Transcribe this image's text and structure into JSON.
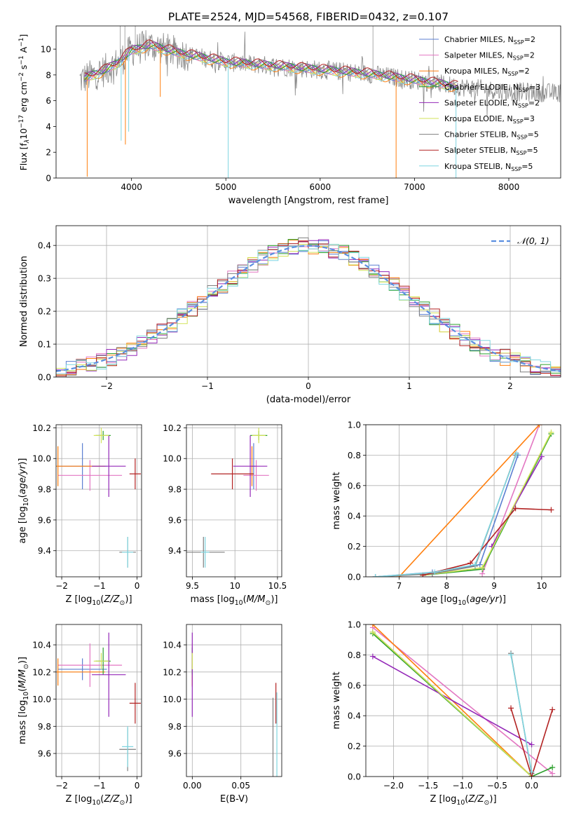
{
  "figure_title": "PLATE=2524, MJD=54568, FIBERID=0432, z=0.107",
  "series_names": [
    "Chabrier MILES",
    "Salpeter MILES",
    "Kroupa MILES",
    "Chabrier ELODIE",
    "Salpeter ELODIE",
    "Kroupa ELODIE",
    "Chabrier STELIB",
    "Salpeter STELIB",
    "Kroupa STELIB"
  ],
  "series_colors": [
    "#5b7fd1",
    "#e377c2",
    "#ff7f0e",
    "#2ca02c",
    "#9428b8",
    "#d2e35a",
    "#7f7f7f",
    "#b22222",
    "#7fd6e0"
  ],
  "chart_data": [
    {
      "type": "line",
      "panel": "spectrum",
      "xlabel": "wavelength [Angstrom, rest frame]",
      "ylabel_parts": [
        "Flux [f",
        "λ",
        "10",
        "−17",
        " erg cm",
        "−2",
        " s",
        "−1",
        " A",
        "−1",
        "]"
      ],
      "xlim": [
        3200,
        8550
      ],
      "ylim": [
        0,
        11.8
      ],
      "xticks": [
        4000,
        5000,
        6000,
        7000,
        8000
      ],
      "yticks": [
        0,
        2,
        4,
        6,
        8,
        10
      ],
      "grid": false,
      "legend_position": "top-right",
      "legend": [
        {
          "name": "Chabrier MILES",
          "n": "2"
        },
        {
          "name": "Salpeter MILES",
          "n": "2"
        },
        {
          "name": "Kroupa MILES",
          "n": "2"
        },
        {
          "name": "Chabrier ELODIE",
          "n": "3"
        },
        {
          "name": "Salpeter ELODIE",
          "n": "2"
        },
        {
          "name": "Kroupa ELODIE",
          "n": "3"
        },
        {
          "name": "Chabrier STELIB",
          "n": "5"
        },
        {
          "name": "Salpeter STELIB",
          "n": "5"
        },
        {
          "name": "Kroupa STELIB",
          "n": "5"
        }
      ],
      "legend_n_label": "N",
      "legend_n_sub": "SSP",
      "continuum": [
        [
          3450,
          7.6
        ],
        [
          3700,
          8.3
        ],
        [
          3850,
          8.9
        ],
        [
          4000,
          9.9
        ],
        [
          4200,
          10.3
        ],
        [
          4500,
          9.7
        ],
        [
          5000,
          9.0
        ],
        [
          5500,
          8.7
        ],
        [
          6000,
          8.4
        ],
        [
          6500,
          8.1
        ],
        [
          7000,
          7.6
        ],
        [
          7450,
          7.1
        ],
        [
          8000,
          6.7
        ],
        [
          8550,
          6.6
        ]
      ],
      "drops": [
        {
          "x": 3530,
          "y": 0.1
        },
        {
          "x": 3890,
          "y": 2.9
        },
        {
          "x": 3935,
          "y": 2.6
        },
        {
          "x": 3970,
          "y": 3.6
        },
        {
          "x": 4305,
          "y": 6.3
        },
        {
          "x": 5025,
          "y": 0.0
        },
        {
          "x": 6805,
          "y": 0.0
        },
        {
          "x": 7440,
          "y": 0.0
        }
      ]
    },
    {
      "type": "histogram",
      "panel": "residuals",
      "xlabel": "(data-model)/error",
      "ylabel": "Normed distribution",
      "xlim": [
        -2.5,
        2.5
      ],
      "ylim": [
        0,
        0.46
      ],
      "xticks": [
        -2,
        -1,
        0,
        1,
        2
      ],
      "yticks": [
        0.0,
        0.1,
        0.2,
        0.3,
        0.4
      ],
      "grid": true,
      "bin_width": 0.1,
      "reference_curve": {
        "name": "𝒩(0, 1)",
        "mean": 0,
        "sigma": 1
      },
      "legend_position": "top-right"
    },
    {
      "type": "scatter",
      "panel": "age-vs-Z",
      "xlabel": "Z [log10(Z/Z⊙)]",
      "ylabel": "age [log10(age/yr)]",
      "xlim": [
        -2.15,
        0.12
      ],
      "ylim": [
        9.23,
        10.22
      ],
      "xticks": [
        -2,
        -1,
        0
      ],
      "yticks": [
        9.4,
        9.6,
        9.8,
        10.0,
        10.2
      ],
      "grid": true,
      "points": [
        {
          "series": 0,
          "x": -1.45,
          "y": 9.95,
          "xerr": 0.65,
          "yerr": 0.15
        },
        {
          "series": 1,
          "x": -1.25,
          "y": 9.89,
          "xerr": 0.85,
          "yerr": 0.1
        },
        {
          "series": 2,
          "x": -2.1,
          "y": 9.95,
          "xerr": 1.25,
          "yerr": 0.13
        },
        {
          "series": 3,
          "x": -0.9,
          "y": 10.15,
          "xerr": 0.2,
          "yerr": 0.03
        },
        {
          "series": 4,
          "x": -0.75,
          "y": 9.95,
          "xerr": 0.45,
          "yerr": 0.2
        },
        {
          "series": 5,
          "x": -0.95,
          "y": 10.15,
          "xerr": 0.2,
          "yerr": 0.05
        },
        {
          "series": 6,
          "x": -0.25,
          "y": 9.39,
          "xerr": 0.22,
          "yerr": 0.1
        },
        {
          "series": 7,
          "x": -0.05,
          "y": 9.9,
          "xerr": 0.15,
          "yerr": 0.1
        },
        {
          "series": 8,
          "x": -0.25,
          "y": 9.39,
          "xerr": 0.15,
          "yerr": 0.1
        }
      ]
    },
    {
      "type": "scatter",
      "panel": "age-vs-mass",
      "xlabel": "mass [log10(M/M⊙)]",
      "ylabel": "",
      "xlim": [
        9.43,
        10.55
      ],
      "ylim": [
        9.23,
        10.22
      ],
      "xticks": [
        9.5,
        10.0,
        10.5
      ],
      "yticks": [
        9.4,
        9.6,
        9.8,
        10.0,
        10.2
      ],
      "grid": true,
      "points": [
        {
          "series": 0,
          "x": 10.22,
          "y": 9.95,
          "xerr": 0.02,
          "yerr": 0.15
        },
        {
          "series": 1,
          "x": 10.25,
          "y": 9.89,
          "xerr": 0.15,
          "yerr": 0.1
        },
        {
          "series": 2,
          "x": 10.2,
          "y": 9.95,
          "xerr": 0.02,
          "yerr": 0.13
        },
        {
          "series": 3,
          "x": 10.28,
          "y": 10.15,
          "xerr": 0.1,
          "yerr": 0.03
        },
        {
          "series": 4,
          "x": 10.18,
          "y": 9.95,
          "xerr": 0.2,
          "yerr": 0.2
        },
        {
          "series": 5,
          "x": 10.28,
          "y": 10.15,
          "xerr": 0.08,
          "yerr": 0.05
        },
        {
          "series": 6,
          "x": 9.63,
          "y": 9.39,
          "xerr": 0.25,
          "yerr": 0.1
        },
        {
          "series": 7,
          "x": 9.97,
          "y": 9.9,
          "xerr": 0.25,
          "yerr": 0.1
        },
        {
          "series": 8,
          "x": 9.65,
          "y": 9.39,
          "xerr": 0.05,
          "yerr": 0.1
        }
      ]
    },
    {
      "type": "line",
      "panel": "mass-weight-vs-age",
      "xlabel": "age  [log10(age/yr)]",
      "ylabel": "mass weight",
      "xlim": [
        6.3,
        10.4
      ],
      "ylim": [
        0,
        1.0
      ],
      "xticks": [
        7,
        8,
        9,
        10
      ],
      "yticks": [
        0.0,
        0.2,
        0.4,
        0.6,
        0.8,
        1.0
      ],
      "grid": true,
      "series": [
        {
          "color": 0,
          "x": [
            6.5,
            7.7,
            8.7,
            9.5
          ],
          "y": [
            0.0,
            0.03,
            0.08,
            0.8
          ]
        },
        {
          "color": 1,
          "x": [
            8.75,
            9.95
          ],
          "y": [
            0.02,
            1.0
          ]
        },
        {
          "color": 2,
          "x": [
            7.0,
            9.95
          ],
          "y": [
            0.0,
            1.0
          ]
        },
        {
          "color": 3,
          "x": [
            7.5,
            8.75,
            10.2
          ],
          "y": [
            0.01,
            0.05,
            0.94
          ]
        },
        {
          "color": 4,
          "x": [
            8.95,
            10.0
          ],
          "y": [
            0.2,
            0.79
          ]
        },
        {
          "color": 5,
          "x": [
            7.5,
            8.75,
            10.2
          ],
          "y": [
            0.01,
            0.06,
            0.95
          ]
        },
        {
          "color": 6,
          "x": [
            6.5,
            7.7,
            8.6,
            9.45
          ],
          "y": [
            0.0,
            0.02,
            0.07,
            0.8
          ]
        },
        {
          "color": 7,
          "x": [
            7.5,
            8.5,
            9.45,
            10.2
          ],
          "y": [
            0.01,
            0.09,
            0.45,
            0.44
          ]
        },
        {
          "color": 8,
          "x": [
            6.5,
            7.75,
            8.6,
            9.47
          ],
          "y": [
            0.0,
            0.03,
            0.08,
            0.81
          ]
        }
      ]
    },
    {
      "type": "scatter",
      "panel": "mass-vs-Z",
      "xlabel": "Z [log10(Z/Z⊙)]",
      "ylabel": "mass [log10(M/M⊙)]",
      "xlim": [
        -2.15,
        0.12
      ],
      "ylim": [
        9.43,
        10.55
      ],
      "xticks": [
        -2,
        -1,
        0
      ],
      "yticks": [
        9.6,
        9.8,
        10.0,
        10.2,
        10.4
      ],
      "grid": true,
      "points": [
        {
          "series": 0,
          "x": -1.45,
          "y": 10.22,
          "xerr": 0.65,
          "yerr": 0.08
        },
        {
          "series": 1,
          "x": -1.25,
          "y": 10.25,
          "xerr": 0.85,
          "yerr": 0.16
        },
        {
          "series": 2,
          "x": -2.1,
          "y": 10.2,
          "xerr": 1.25,
          "yerr": 0.1
        },
        {
          "series": 3,
          "x": -0.9,
          "y": 10.28,
          "xerr": 0.2,
          "yerr": 0.1
        },
        {
          "series": 4,
          "x": -0.75,
          "y": 10.18,
          "xerr": 0.45,
          "yerr": 0.31
        },
        {
          "series": 5,
          "x": -0.95,
          "y": 10.28,
          "xerr": 0.2,
          "yerr": 0.06
        },
        {
          "series": 6,
          "x": -0.25,
          "y": 9.63,
          "xerr": 0.22,
          "yerr": 0.16
        },
        {
          "series": 7,
          "x": -0.05,
          "y": 9.97,
          "xerr": 0.15,
          "yerr": 0.15
        },
        {
          "series": 8,
          "x": -0.25,
          "y": 9.65,
          "xerr": 0.15,
          "yerr": 0.15
        }
      ]
    },
    {
      "type": "scatter",
      "panel": "mass-vs-ebv",
      "xlabel": "E(B-V)",
      "ylabel": "",
      "xlim": [
        -0.006,
        0.092
      ],
      "ylim": [
        9.43,
        10.55
      ],
      "xticks": [
        0.0,
        0.05
      ],
      "xtick_labels": [
        "0.00",
        "0.05"
      ],
      "yticks": [
        9.6,
        9.8,
        10.0,
        10.2,
        10.4
      ],
      "grid": true,
      "points": [
        {
          "series": 0,
          "x": 0.0,
          "y": 10.22,
          "xerr": 0.0,
          "yerr": 0.08
        },
        {
          "series": 1,
          "x": 0.0,
          "y": 10.25,
          "xerr": 0.0,
          "yerr": 0.16
        },
        {
          "series": 2,
          "x": 0.0,
          "y": 10.2,
          "xerr": 0.0,
          "yerr": 0.1
        },
        {
          "series": 3,
          "x": 0.0,
          "y": 10.28,
          "xerr": 0.0,
          "yerr": 0.1
        },
        {
          "series": 4,
          "x": 0.0,
          "y": 10.18,
          "xerr": 0.0,
          "yerr": 0.31
        },
        {
          "series": 5,
          "x": 0.0,
          "y": 10.28,
          "xerr": 0.0,
          "yerr": 0.06
        },
        {
          "series": 6,
          "x": 0.083,
          "y": 9.63,
          "xerr": 0.0,
          "yerr": 0.38
        },
        {
          "series": 7,
          "x": 0.086,
          "y": 9.97,
          "xerr": 0.0,
          "yerr": 0.15
        },
        {
          "series": 8,
          "x": 0.087,
          "y": 9.65,
          "xerr": 0.0,
          "yerr": 0.4
        }
      ]
    },
    {
      "type": "line",
      "panel": "mass-weight-vs-Z",
      "xlabel": "Z [log10(Z/Z⊙)]",
      "ylabel": "mass weight",
      "xlim": [
        -2.4,
        0.42
      ],
      "ylim": [
        0,
        1.0
      ],
      "xticks": [
        -2.0,
        -1.5,
        -1.0,
        -0.5,
        0.0
      ],
      "xtick_labels": [
        "−2.0",
        "−1.5",
        "−1.0",
        "−0.5",
        "0.0"
      ],
      "yticks": [
        0.0,
        0.2,
        0.4,
        0.6,
        0.8,
        1.0
      ],
      "grid": true,
      "series": [
        {
          "color": 0,
          "x": [
            -2.3,
            0.0
          ],
          "y": [
            0.95,
            0.0
          ]
        },
        {
          "color": 1,
          "x": [
            -2.3,
            0.3
          ],
          "y": [
            0.98,
            0.02
          ]
        },
        {
          "color": 2,
          "x": [
            -2.3,
            0.0
          ],
          "y": [
            1.0,
            0.0
          ]
        },
        {
          "color": 3,
          "x": [
            -2.3,
            0.0,
            0.3
          ],
          "y": [
            0.94,
            0.0,
            0.06
          ]
        },
        {
          "color": 4,
          "x": [
            -2.3,
            0.0
          ],
          "y": [
            0.79,
            0.21
          ]
        },
        {
          "color": 5,
          "x": [
            -2.3,
            0.0
          ],
          "y": [
            0.95,
            0.0
          ]
        },
        {
          "color": 6,
          "x": [
            -0.3,
            0.0
          ],
          "y": [
            0.81,
            0.02
          ]
        },
        {
          "color": 7,
          "x": [
            -0.3,
            0.0,
            0.3
          ],
          "y": [
            0.45,
            0.0,
            0.44
          ]
        },
        {
          "color": 8,
          "x": [
            -0.3,
            0.0
          ],
          "y": [
            0.8,
            0.03
          ]
        }
      ]
    }
  ]
}
